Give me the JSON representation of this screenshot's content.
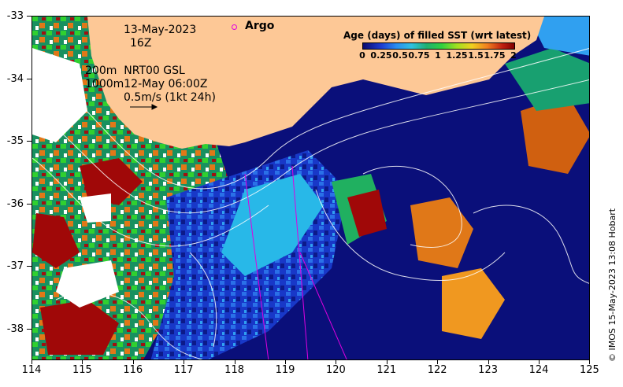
{
  "map": {
    "date": "13-May-2023",
    "hour": "16Z",
    "argo_label": "Argo",
    "current_info_line1": "200m  NRT00 GSL",
    "current_info_line2": "1000m12-May 06:00Z",
    "scale_label": "0.5m/s (1kt 24h)",
    "legend_title": "Age (days) of filled SST (wrt latest)",
    "legend_ticks": [
      "0",
      "0.25",
      "0.5",
      "0.75",
      "1",
      "1.25",
      "1.5",
      "1.75",
      "2"
    ],
    "credit": "© IMOS 15-May-2023 13:08 Hobart",
    "y_ticks": [
      "-33",
      "-34",
      "-35",
      "-36",
      "-37",
      "-38"
    ],
    "x_ticks": [
      "114",
      "115",
      "116",
      "117",
      "118",
      "119",
      "120",
      "121",
      "122",
      "123",
      "124",
      "125"
    ],
    "colors": {
      "land": "#fdc896",
      "deep": "#0a0f7a",
      "argo": "#e000e0"
    }
  }
}
